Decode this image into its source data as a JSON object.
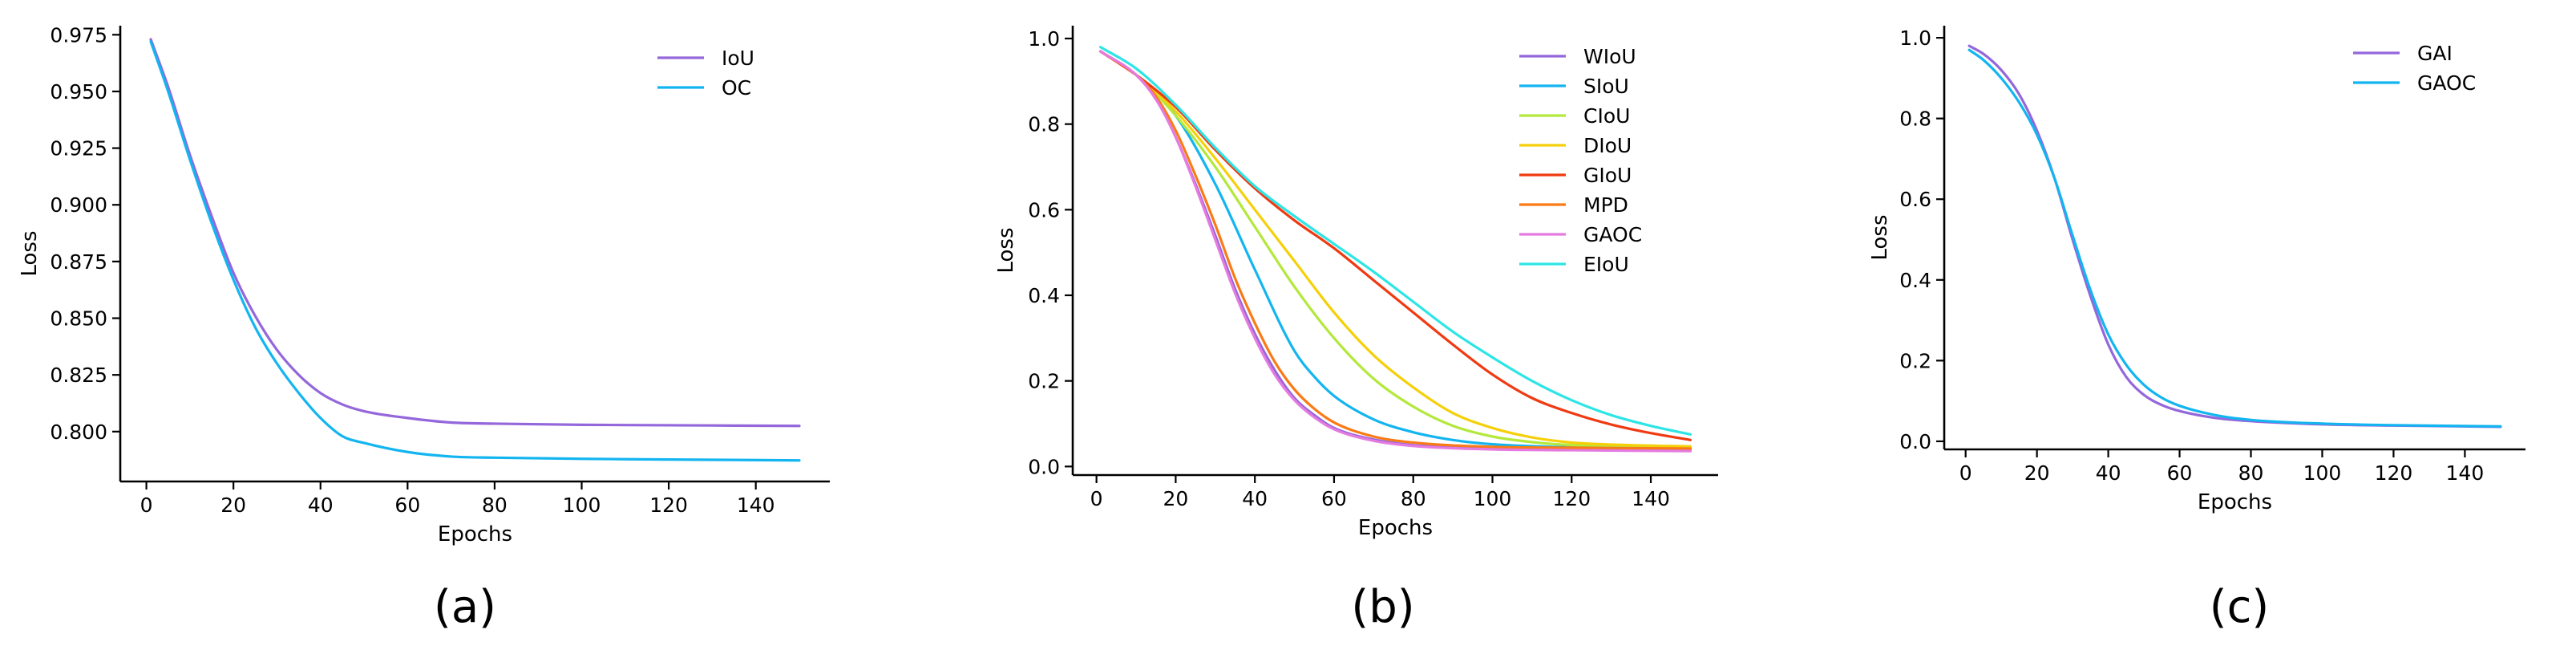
{
  "chart_data": [
    {
      "type": "line",
      "panel_label": "(a)",
      "xlabel": "Epochs",
      "ylabel": "Loss",
      "xlim": [
        -6,
        157
      ],
      "ylim": [
        0.778,
        0.979
      ],
      "xticks": [
        0,
        20,
        40,
        60,
        80,
        100,
        120,
        140
      ],
      "xtick_labels": [
        "0",
        "20",
        "40",
        "60",
        "80",
        "100",
        "120",
        "140"
      ],
      "yticks": [
        0.8,
        0.825,
        0.85,
        0.875,
        0.9,
        0.925,
        0.95,
        0.975
      ],
      "ytick_labels": [
        "0.800",
        "0.825",
        "0.850",
        "0.875",
        "0.900",
        "0.925",
        "0.950",
        "0.975"
      ],
      "legend_position": "top-right",
      "series": [
        {
          "name": "IoU",
          "color": "#9467db",
          "x": [
            1,
            5,
            10,
            15,
            20,
            25,
            30,
            35,
            40,
            45,
            50,
            60,
            70,
            80,
            100,
            120,
            150
          ],
          "y": [
            0.973,
            0.952,
            0.922,
            0.895,
            0.87,
            0.851,
            0.836,
            0.825,
            0.817,
            0.812,
            0.809,
            0.806,
            0.804,
            0.8035,
            0.803,
            0.8028,
            0.8025
          ]
        },
        {
          "name": "OC",
          "color": "#13b5f0",
          "x": [
            1,
            5,
            10,
            15,
            20,
            25,
            30,
            35,
            40,
            45,
            50,
            60,
            70,
            80,
            100,
            120,
            150
          ],
          "y": [
            0.972,
            0.95,
            0.92,
            0.892,
            0.867,
            0.846,
            0.83,
            0.817,
            0.806,
            0.798,
            0.795,
            0.791,
            0.789,
            0.7885,
            0.788,
            0.7877,
            0.7873
          ]
        }
      ]
    },
    {
      "type": "line",
      "panel_label": "(b)",
      "xlabel": "Epochs",
      "ylabel": "Loss",
      "xlim": [
        -6,
        157
      ],
      "ylim": [
        -0.02,
        1.03
      ],
      "xticks": [
        0,
        20,
        40,
        60,
        80,
        100,
        120,
        140
      ],
      "xtick_labels": [
        "0",
        "20",
        "40",
        "60",
        "80",
        "100",
        "120",
        "140"
      ],
      "yticks": [
        0.0,
        0.2,
        0.4,
        0.6,
        0.8,
        1.0
      ],
      "ytick_labels": [
        "0.0",
        "0.2",
        "0.4",
        "0.6",
        "0.8",
        "1.0"
      ],
      "legend_position": "top-right",
      "series": [
        {
          "name": "WIoU",
          "color": "#9467db",
          "x": [
            1,
            10,
            15,
            20,
            25,
            30,
            35,
            40,
            45,
            50,
            55,
            60,
            70,
            80,
            100,
            120,
            150
          ],
          "y": [
            0.97,
            0.915,
            0.86,
            0.77,
            0.66,
            0.54,
            0.415,
            0.31,
            0.225,
            0.16,
            0.12,
            0.09,
            0.063,
            0.05,
            0.042,
            0.04,
            0.038
          ]
        },
        {
          "name": "SIoU",
          "color": "#13b5f0",
          "x": [
            1,
            10,
            20,
            30,
            40,
            50,
            55,
            60,
            70,
            80,
            90,
            100,
            120,
            150
          ],
          "y": [
            0.97,
            0.915,
            0.82,
            0.66,
            0.46,
            0.27,
            0.21,
            0.165,
            0.11,
            0.08,
            0.062,
            0.052,
            0.045,
            0.042
          ]
        },
        {
          "name": "CIoU",
          "color": "#b3e83c",
          "x": [
            1,
            10,
            20,
            30,
            40,
            50,
            60,
            70,
            80,
            90,
            100,
            110,
            120,
            150
          ],
          "y": [
            0.97,
            0.915,
            0.82,
            0.7,
            0.56,
            0.42,
            0.3,
            0.205,
            0.14,
            0.095,
            0.07,
            0.057,
            0.05,
            0.045
          ]
        },
        {
          "name": "DIoU",
          "color": "#f5d00a",
          "x": [
            1,
            10,
            20,
            30,
            40,
            50,
            60,
            70,
            80,
            90,
            100,
            110,
            120,
            135,
            150
          ],
          "y": [
            0.97,
            0.915,
            0.83,
            0.72,
            0.6,
            0.48,
            0.36,
            0.26,
            0.185,
            0.125,
            0.09,
            0.068,
            0.056,
            0.05,
            0.047
          ]
        },
        {
          "name": "GIoU",
          "color": "#f03a12",
          "x": [
            1,
            10,
            20,
            30,
            40,
            50,
            60,
            70,
            80,
            90,
            100,
            110,
            120,
            130,
            140,
            150
          ],
          "y": [
            0.97,
            0.915,
            0.84,
            0.74,
            0.65,
            0.575,
            0.51,
            0.435,
            0.36,
            0.285,
            0.215,
            0.16,
            0.125,
            0.098,
            0.078,
            0.062
          ]
        },
        {
          "name": "MPD",
          "color": "#fa7a16",
          "x": [
            1,
            10,
            15,
            20,
            25,
            30,
            35,
            40,
            45,
            50,
            55,
            60,
            70,
            80,
            100,
            120,
            150
          ],
          "y": [
            0.97,
            0.915,
            0.865,
            0.785,
            0.68,
            0.565,
            0.44,
            0.335,
            0.245,
            0.18,
            0.135,
            0.103,
            0.07,
            0.056,
            0.046,
            0.044,
            0.042
          ]
        },
        {
          "name": "GAOC",
          "color": "#e57be0",
          "x": [
            1,
            10,
            15,
            20,
            25,
            30,
            35,
            40,
            45,
            50,
            55,
            60,
            70,
            80,
            100,
            120,
            150
          ],
          "y": [
            0.97,
            0.915,
            0.858,
            0.77,
            0.655,
            0.53,
            0.405,
            0.3,
            0.215,
            0.155,
            0.115,
            0.087,
            0.06,
            0.048,
            0.04,
            0.038,
            0.036
          ]
        },
        {
          "name": "EIoU",
          "color": "#2ee5e5",
          "x": [
            1,
            10,
            20,
            30,
            40,
            50,
            60,
            70,
            80,
            90,
            100,
            110,
            120,
            130,
            140,
            150
          ],
          "y": [
            0.98,
            0.93,
            0.845,
            0.745,
            0.655,
            0.585,
            0.52,
            0.455,
            0.385,
            0.315,
            0.255,
            0.2,
            0.155,
            0.12,
            0.095,
            0.075
          ]
        }
      ]
    },
    {
      "type": "line",
      "panel_label": "(c)",
      "xlabel": "Epochs",
      "ylabel": "Loss",
      "xlim": [
        -6,
        157
      ],
      "ylim": [
        -0.02,
        1.03
      ],
      "xticks": [
        0,
        20,
        40,
        60,
        80,
        100,
        120,
        140
      ],
      "xtick_labels": [
        "0",
        "20",
        "40",
        "60",
        "80",
        "100",
        "120",
        "140"
      ],
      "yticks": [
        0.0,
        0.2,
        0.4,
        0.6,
        0.8,
        1.0
      ],
      "ytick_labels": [
        "0.0",
        "0.2",
        "0.4",
        "0.6",
        "0.8",
        "1.0"
      ],
      "legend_position": "top-right",
      "series": [
        {
          "name": "GAI",
          "color": "#9467db",
          "x": [
            1,
            5,
            10,
            15,
            20,
            25,
            30,
            35,
            40,
            45,
            50,
            55,
            60,
            70,
            80,
            100,
            120,
            150
          ],
          "y": [
            0.98,
            0.96,
            0.92,
            0.86,
            0.77,
            0.65,
            0.5,
            0.36,
            0.24,
            0.16,
            0.115,
            0.09,
            0.075,
            0.058,
            0.05,
            0.042,
            0.039,
            0.036
          ]
        },
        {
          "name": "GAOC",
          "color": "#13b5f0",
          "x": [
            1,
            5,
            10,
            15,
            20,
            25,
            30,
            35,
            40,
            45,
            50,
            55,
            60,
            70,
            80,
            100,
            120,
            150
          ],
          "y": [
            0.97,
            0.945,
            0.9,
            0.84,
            0.76,
            0.65,
            0.51,
            0.375,
            0.265,
            0.19,
            0.14,
            0.108,
            0.088,
            0.065,
            0.053,
            0.044,
            0.04,
            0.037
          ]
        }
      ]
    }
  ]
}
